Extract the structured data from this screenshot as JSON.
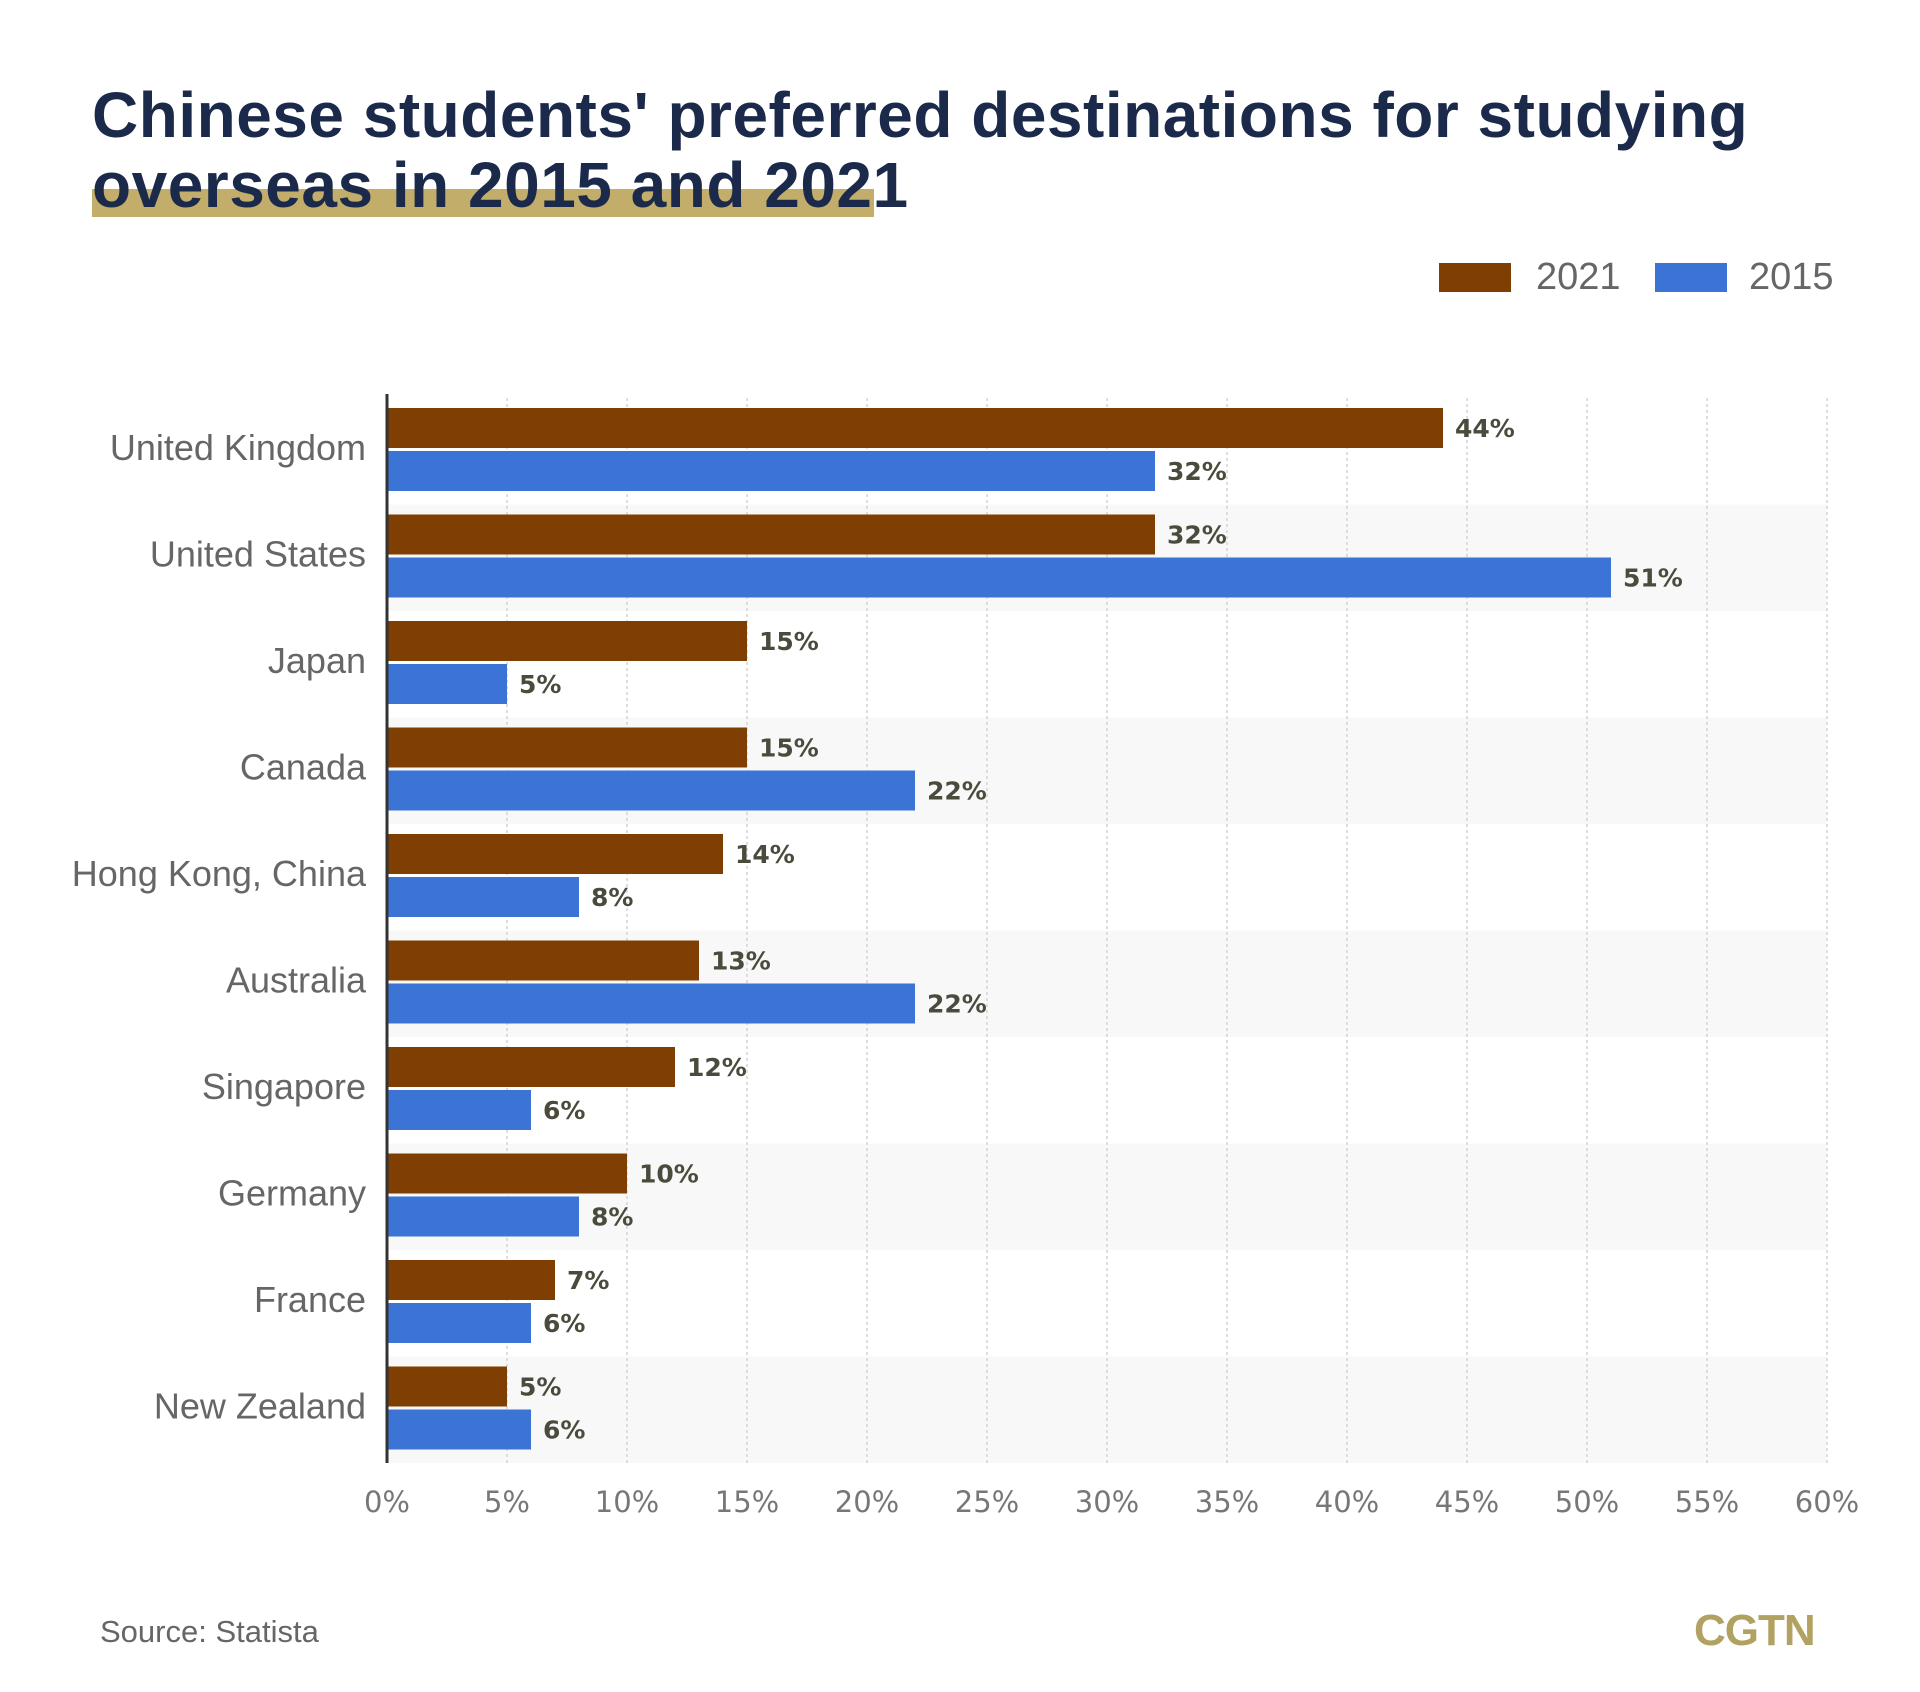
{
  "title": {
    "line1": "Chinese students' preferred destinations for studying",
    "line2": "overseas in 2015 and 2021"
  },
  "source": "Source: Statista",
  "logo": "CGTN",
  "colors": {
    "s2021": "#7f3f02",
    "s2015": "#3c74d6",
    "title": "#1b2a4a",
    "highlight": "#c2ae6a"
  },
  "chart_data": {
    "type": "bar",
    "orientation": "horizontal",
    "title": "Chinese students' preferred destinations for studying overseas in 2015 and 2021",
    "categories": [
      "United Kingdom",
      "United States",
      "Japan",
      "Canada",
      "Hong Kong, China",
      "Australia",
      "Singapore",
      "Germany",
      "France",
      "New Zealand"
    ],
    "series": [
      {
        "name": "2021",
        "values": [
          44,
          32,
          15,
          15,
          14,
          13,
          12,
          10,
          7,
          5
        ]
      },
      {
        "name": "2015",
        "values": [
          32,
          51,
          5,
          22,
          8,
          22,
          6,
          8,
          6,
          6
        ]
      }
    ],
    "xlim": [
      0,
      60
    ],
    "xticks": [
      "0%",
      "5%",
      "10%",
      "15%",
      "20%",
      "25%",
      "30%",
      "35%",
      "40%",
      "45%",
      "50%",
      "55%",
      "60%"
    ],
    "xlabel": "",
    "ylabel": "",
    "grid": true,
    "legend": "top-right",
    "value_suffix": "%"
  }
}
